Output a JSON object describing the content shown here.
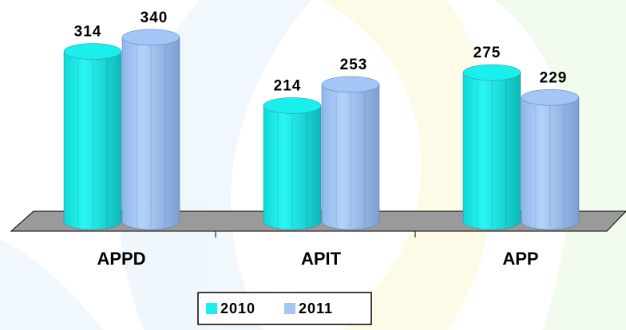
{
  "chart_data": {
    "type": "bar3d",
    "categories": [
      "APPD",
      "APIT",
      "APP"
    ],
    "series": [
      {
        "name": "2010",
        "color": "#19f0ee",
        "values": [
          314,
          214,
          275
        ]
      },
      {
        "name": "2011",
        "color": "#a3c6f7",
        "values": [
          340,
          253,
          229
        ]
      }
    ],
    "legend": "bottom"
  }
}
